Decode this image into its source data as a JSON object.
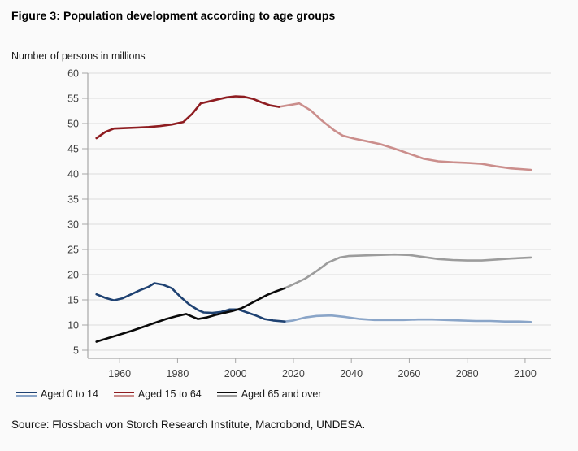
{
  "figure": {
    "title": "Figure 3: Population development according to age groups",
    "subtitle": "Number of persons in millions",
    "source": "Source: Flossbach von Storch Research Institute, Macrobond, UNDESA."
  },
  "legend": {
    "items": [
      {
        "label": "Aged 0 to 14",
        "color_dark": "#1f4272",
        "color_light": "#8aa5c8"
      },
      {
        "label": "Aged 15 to 64",
        "color_dark": "#8e1c20",
        "color_light": "#cb8e8c"
      },
      {
        "label": "Aged 65 and over",
        "color_dark": "#0a0a0a",
        "color_light": "#9c9c9c"
      }
    ]
  },
  "colors": {
    "background": "#fafafa",
    "gridline": "#dcdcdc",
    "axis": "#a6a6a6",
    "tick_text": "#3d3d3d"
  },
  "chart_data": {
    "type": "line",
    "title": "Figure 3: Population development according to age groups",
    "ylabel": "Number of persons in millions",
    "xlabel": "",
    "grid": "horizontal",
    "legend_position": "bottom",
    "x_ticks": [
      1960,
      1980,
      2000,
      2020,
      2040,
      2060,
      2080,
      2100
    ],
    "y_ticks": [
      5,
      10,
      15,
      20,
      25,
      30,
      35,
      40,
      45,
      50,
      55,
      60
    ],
    "xlim": [
      1949,
      2109
    ],
    "ylim": [
      5,
      60
    ],
    "style_note": "each series drawn dark for years up to ~2016 and lighter from ~2016 to 2102",
    "series": [
      {
        "name": "Aged 0 to 14",
        "color_dark": "#1f4272",
        "color_light": "#8aa5c8",
        "dark_points": [
          [
            1952,
            16.1
          ],
          [
            1955,
            15.4
          ],
          [
            1958,
            14.9
          ],
          [
            1961,
            15.3
          ],
          [
            1964,
            16.1
          ],
          [
            1967,
            16.9
          ],
          [
            1970,
            17.6
          ],
          [
            1972,
            18.3
          ],
          [
            1975,
            18.0
          ],
          [
            1978,
            17.3
          ],
          [
            1981,
            15.6
          ],
          [
            1984,
            14.1
          ],
          [
            1987,
            13.0
          ],
          [
            1989,
            12.5
          ],
          [
            1992,
            12.4
          ],
          [
            1995,
            12.6
          ],
          [
            1998,
            13.1
          ],
          [
            2001,
            13.1
          ],
          [
            2004,
            12.5
          ],
          [
            2007,
            11.9
          ],
          [
            2010,
            11.2
          ],
          [
            2013,
            10.9
          ],
          [
            2017,
            10.7
          ]
        ],
        "light_points": [
          [
            2017,
            10.7
          ],
          [
            2020,
            10.9
          ],
          [
            2024,
            11.5
          ],
          [
            2028,
            11.8
          ],
          [
            2033,
            11.9
          ],
          [
            2038,
            11.6
          ],
          [
            2043,
            11.2
          ],
          [
            2048,
            11.0
          ],
          [
            2053,
            11.0
          ],
          [
            2058,
            11.0
          ],
          [
            2063,
            11.1
          ],
          [
            2068,
            11.1
          ],
          [
            2073,
            11.0
          ],
          [
            2078,
            10.9
          ],
          [
            2083,
            10.8
          ],
          [
            2088,
            10.8
          ],
          [
            2093,
            10.7
          ],
          [
            2098,
            10.7
          ],
          [
            2102,
            10.6
          ]
        ]
      },
      {
        "name": "Aged 15 to 64",
        "color_dark": "#8e1c20",
        "color_light": "#cb8e8c",
        "dark_points": [
          [
            1952,
            47.1
          ],
          [
            1955,
            48.3
          ],
          [
            1958,
            49.0
          ],
          [
            1962,
            49.1
          ],
          [
            1966,
            49.2
          ],
          [
            1970,
            49.3
          ],
          [
            1974,
            49.5
          ],
          [
            1978,
            49.8
          ],
          [
            1982,
            50.3
          ],
          [
            1985,
            51.9
          ],
          [
            1988,
            54.0
          ],
          [
            1991,
            54.4
          ],
          [
            1994,
            54.8
          ],
          [
            1997,
            55.2
          ],
          [
            2000,
            55.4
          ],
          [
            2003,
            55.3
          ],
          [
            2006,
            54.9
          ],
          [
            2009,
            54.2
          ],
          [
            2012,
            53.6
          ],
          [
            2015,
            53.3
          ]
        ],
        "light_points": [
          [
            2015,
            53.3
          ],
          [
            2018,
            53.6
          ],
          [
            2022,
            54.0
          ],
          [
            2026,
            52.6
          ],
          [
            2030,
            50.5
          ],
          [
            2034,
            48.7
          ],
          [
            2037,
            47.6
          ],
          [
            2041,
            47.0
          ],
          [
            2046,
            46.4
          ],
          [
            2050,
            45.9
          ],
          [
            2055,
            45.0
          ],
          [
            2060,
            44.0
          ],
          [
            2065,
            43.0
          ],
          [
            2070,
            42.5
          ],
          [
            2075,
            42.3
          ],
          [
            2080,
            42.2
          ],
          [
            2085,
            42.0
          ],
          [
            2090,
            41.5
          ],
          [
            2095,
            41.1
          ],
          [
            2102,
            40.8
          ]
        ]
      },
      {
        "name": "Aged 65 and over",
        "color_dark": "#0a0a0a",
        "color_light": "#9c9c9c",
        "dark_points": [
          [
            1952,
            6.7
          ],
          [
            1956,
            7.4
          ],
          [
            1960,
            8.1
          ],
          [
            1964,
            8.8
          ],
          [
            1968,
            9.6
          ],
          [
            1972,
            10.4
          ],
          [
            1976,
            11.2
          ],
          [
            1980,
            11.8
          ],
          [
            1983,
            12.2
          ],
          [
            1987,
            11.2
          ],
          [
            1990,
            11.5
          ],
          [
            1993,
            12.0
          ],
          [
            1996,
            12.4
          ],
          [
            1999,
            12.8
          ],
          [
            2002,
            13.3
          ],
          [
            2005,
            14.2
          ],
          [
            2008,
            15.1
          ],
          [
            2011,
            16.0
          ],
          [
            2014,
            16.7
          ],
          [
            2017,
            17.3
          ]
        ],
        "light_points": [
          [
            2017,
            17.3
          ],
          [
            2020,
            18.1
          ],
          [
            2024,
            19.2
          ],
          [
            2028,
            20.7
          ],
          [
            2032,
            22.4
          ],
          [
            2036,
            23.4
          ],
          [
            2039,
            23.7
          ],
          [
            2044,
            23.8
          ],
          [
            2049,
            23.9
          ],
          [
            2055,
            24.0
          ],
          [
            2060,
            23.9
          ],
          [
            2065,
            23.5
          ],
          [
            2070,
            23.1
          ],
          [
            2075,
            22.9
          ],
          [
            2080,
            22.8
          ],
          [
            2085,
            22.8
          ],
          [
            2090,
            23.0
          ],
          [
            2095,
            23.2
          ],
          [
            2102,
            23.4
          ]
        ]
      }
    ]
  }
}
